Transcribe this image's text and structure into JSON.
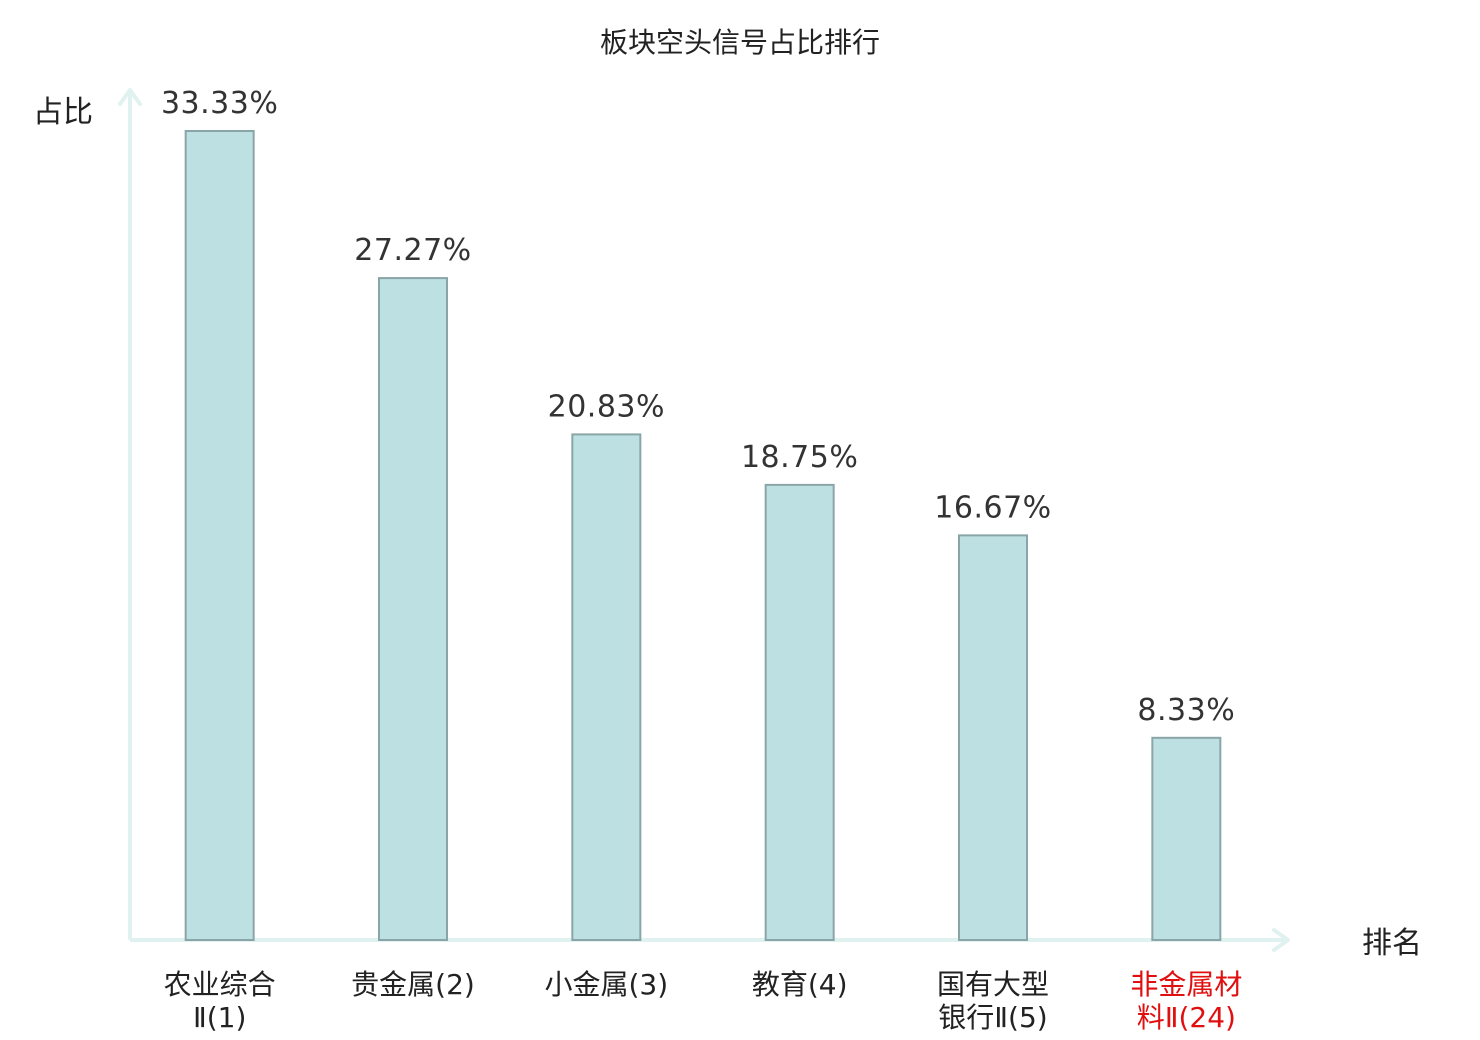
{
  "chart_data": {
    "type": "bar",
    "title": "板块空头信号占比排行",
    "ylabel": "占比",
    "xlabel": "排名",
    "ylim": [
      0,
      35
    ],
    "grid": false,
    "legend": "none",
    "categories": [
      {
        "lines": [
          "农业综合",
          "Ⅱ(1)"
        ],
        "highlight": false
      },
      {
        "lines": [
          "贵金属(2)"
        ],
        "highlight": false
      },
      {
        "lines": [
          "小金属(3)"
        ],
        "highlight": false
      },
      {
        "lines": [
          "教育(4)"
        ],
        "highlight": false
      },
      {
        "lines": [
          "国有大型",
          "银行Ⅱ(5)"
        ],
        "highlight": false
      },
      {
        "lines": [
          "非金属材",
          "料Ⅱ(24)"
        ],
        "highlight": true
      }
    ],
    "values": [
      33.33,
      27.27,
      20.83,
      18.75,
      16.67,
      8.33
    ],
    "value_labels": [
      "33.33%",
      "27.27%",
      "20.83%",
      "18.75%",
      "16.67%",
      "8.33%"
    ],
    "colors": {
      "bar_fill": "#bde0e3",
      "bar_stroke": "#8aa5a8",
      "axis": "#e0f2ef",
      "highlight_text": "#e01010"
    }
  }
}
